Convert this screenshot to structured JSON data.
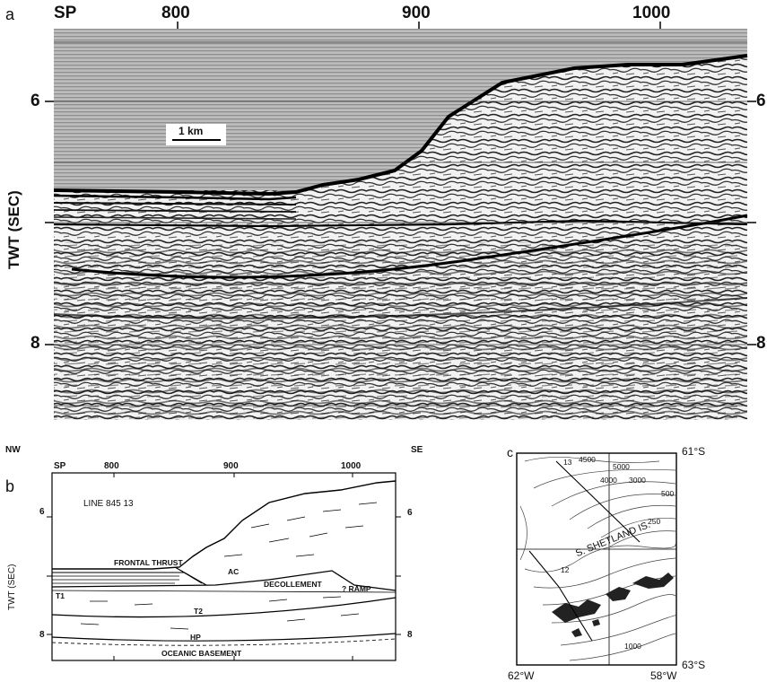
{
  "panel_a": {
    "letter": "a",
    "sp_label": "SP",
    "sp_ticks": [
      "800",
      "900",
      "1000"
    ],
    "y_label": "TWT (SEC)",
    "y_ticks_left": [
      "6",
      "8"
    ],
    "y_ticks_right": [
      "6",
      "8"
    ],
    "scale_bar": "1 km"
  },
  "panel_b": {
    "letter": "b",
    "nw": "NW",
    "se": "SE",
    "sp_label": "SP",
    "sp_ticks": [
      "800",
      "900",
      "1000"
    ],
    "y_label": "TWT (SEC)",
    "y_ticks_left": [
      "6",
      "8"
    ],
    "y_ticks_right": [
      "6",
      "8"
    ],
    "line_title": "LINE 845 13",
    "labels": {
      "frontal_thrust": "FRONTAL THRUST",
      "ac": "AC",
      "decollement": "DECOLLEMENT",
      "ramp": "? RAMP",
      "t1": "T1",
      "t2": "T2",
      "hp": "HP",
      "oceanic": "OCEANIC BASEMENT"
    }
  },
  "panel_c": {
    "letter": "c",
    "lat_top": "61°S",
    "lat_bottom": "63°S",
    "lon_left": "62°W",
    "lon_right": "58°W",
    "contours": [
      "4500",
      "5000",
      "4000",
      "3000",
      "500",
      "250",
      "1000"
    ],
    "track_labels": [
      "13",
      "12"
    ],
    "island_label": "S. SHETLAND IS."
  }
}
